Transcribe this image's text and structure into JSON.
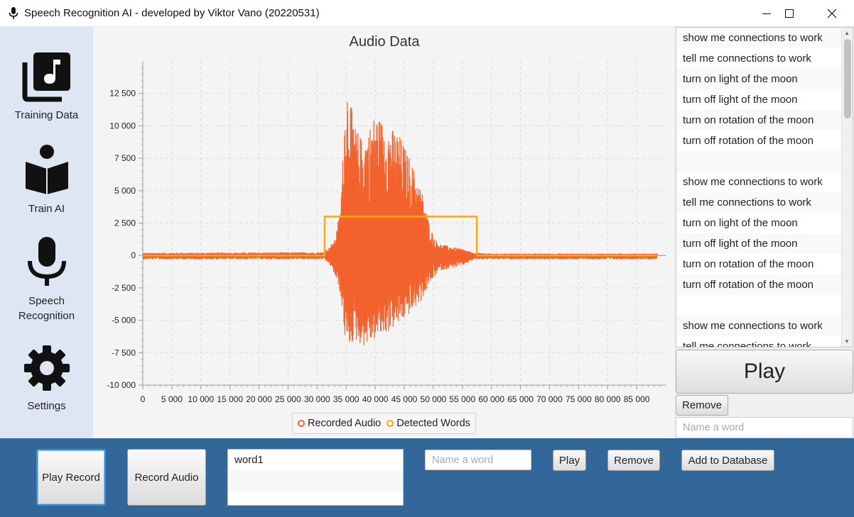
{
  "window": {
    "title": "Speech Recognition AI - developed by Viktor Vano (20220531)"
  },
  "sidebar": {
    "items": [
      {
        "label": "Training Data",
        "icon": "music-library-icon"
      },
      {
        "label": "Train AI",
        "icon": "reader-icon"
      },
      {
        "label": "Speech Recognition",
        "label_lines": [
          "Speech",
          "Recognition"
        ],
        "icon": "microphone-icon"
      },
      {
        "label": "Settings",
        "icon": "gear-icon"
      }
    ]
  },
  "chart_data": {
    "type": "line",
    "title": "Audio Data",
    "xlabel": "",
    "ylabel": "",
    "xlim": [
      0,
      90000
    ],
    "ylim": [
      -10000,
      15000
    ],
    "x_ticks": [
      "0",
      "5 000",
      "10 000",
      "15 000",
      "20 000",
      "25 000",
      "30 000",
      "35 000",
      "40 000",
      "45 000",
      "50 000",
      "55 000",
      "60 000",
      "65 000",
      "70 000",
      "75 000",
      "80 000",
      "85 000"
    ],
    "y_ticks": [
      "12 500",
      "10 000",
      "7 500",
      "5 000",
      "2 500",
      "0",
      "-2 500",
      "-5 000",
      "-7 500",
      "-10 000"
    ],
    "grid": true,
    "legend_placement": "bottom-center",
    "series": [
      {
        "name": "Recorded Audio",
        "color": "#f3622d",
        "envelope": {
          "x": [
            0,
            31000,
            32000,
            33000,
            34000,
            35000,
            35500,
            36500,
            38000,
            40000,
            42000,
            44000,
            46000,
            48000,
            49000,
            50000,
            51000,
            53000,
            55000,
            57000,
            58000,
            60000,
            88500
          ],
          "upper": [
            200,
            250,
            600,
            1200,
            3500,
            13600,
            12500,
            10000,
            8800,
            11000,
            10000,
            9500,
            7500,
            5000,
            3000,
            1500,
            900,
            700,
            500,
            200,
            200,
            150,
            150
          ],
          "lower": [
            -300,
            -300,
            -600,
            -1500,
            -3000,
            -7400,
            -7000,
            -6600,
            -7000,
            -6500,
            -6000,
            -5300,
            -4500,
            -3500,
            -2500,
            -1800,
            -1200,
            -1000,
            -800,
            -300,
            -300,
            -300,
            -300
          ]
        }
      },
      {
        "name": "Detected Words",
        "color": "#f9a619",
        "points": {
          "x": [
            0,
            31300,
            31300,
            57500,
            57500,
            88500
          ],
          "y": [
            0,
            0,
            3000,
            3000,
            0,
            0
          ]
        }
      }
    ]
  },
  "sentence_list": {
    "items": [
      "show me connections to work",
      "tell me connections to work",
      "turn on light of the moon",
      "turn off light of the moon",
      "turn on rotation of the moon",
      "turn off rotation of the moon",
      "",
      "show me connections to work",
      "tell me connections to work",
      "turn on light of the moon",
      "turn off light of the moon",
      "turn on rotation of the moon",
      "turn off rotation of the moon",
      "",
      "show me connections to work",
      "tell me connections to work"
    ]
  },
  "right_panel": {
    "play_label": "Play",
    "remove_label": "Remove",
    "name_placeholder": "Name a word"
  },
  "bottom_bar": {
    "play_record_label": "Play Record",
    "record_audio_label": "Record Audio",
    "words": [
      "word1",
      ""
    ],
    "name_placeholder": "Name a word",
    "play_label": "Play",
    "remove_label": "Remove",
    "add_db_label": "Add to Database"
  }
}
